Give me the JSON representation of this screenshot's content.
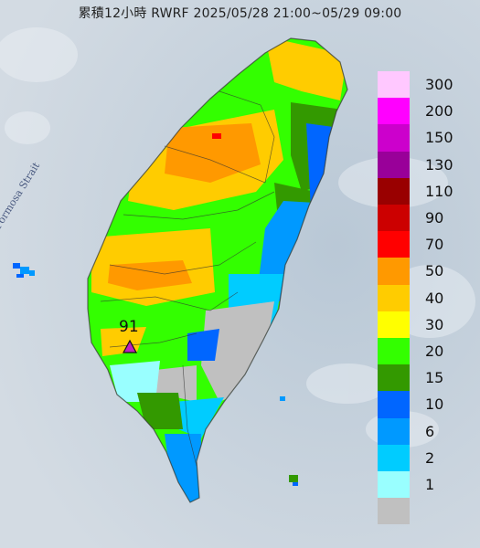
{
  "title": "累積12小時 RWRF 2025/05/28 21:00~05/29 09:00",
  "strait_label": "Formosa Strait",
  "max_marker": {
    "value": "91",
    "color": "#c020c0"
  },
  "legend": [
    {
      "label": "300",
      "color": "#ffc8ff"
    },
    {
      "label": "200",
      "color": "#ff00ff"
    },
    {
      "label": "150",
      "color": "#cc00cc"
    },
    {
      "label": "130",
      "color": "#990099"
    },
    {
      "label": "110",
      "color": "#990000"
    },
    {
      "label": "90",
      "color": "#cc0000"
    },
    {
      "label": "70",
      "color": "#ff0000"
    },
    {
      "label": "50",
      "color": "#ff9900"
    },
    {
      "label": "40",
      "color": "#ffcc00"
    },
    {
      "label": "30",
      "color": "#ffff00"
    },
    {
      "label": "20",
      "color": "#33ff00"
    },
    {
      "label": "15",
      "color": "#339900"
    },
    {
      "label": "10",
      "color": "#0066ff"
    },
    {
      "label": "6",
      "color": "#0099ff"
    },
    {
      "label": "2",
      "color": "#00ccff"
    },
    {
      "label": "1",
      "color": "#99ffff"
    },
    {
      "label": "",
      "color": "#c0c0c0"
    }
  ]
}
